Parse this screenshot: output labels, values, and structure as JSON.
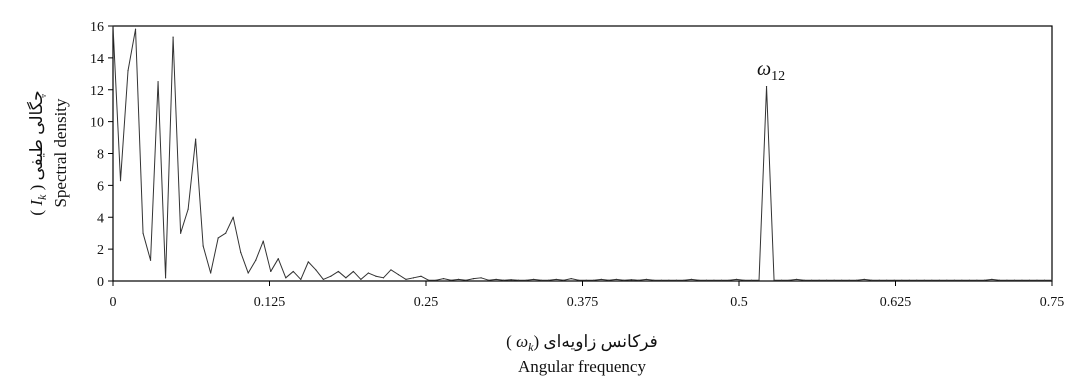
{
  "chart_data": {
    "type": "line",
    "title": "",
    "xlabel_fa": "فرکانس زاویه‌ای",
    "xlabel_symbol": "ω",
    "xlabel_symbol_sub": "k",
    "xlabel_en": "Angular frequency",
    "ylabel_fa": "چگالی طیفی",
    "ylabel_symbol": "I",
    "ylabel_symbol_sub": "k",
    "ylabel_en": "Spectral density",
    "xlim": [
      0,
      0.75
    ],
    "ylim": [
      0,
      16
    ],
    "xticks": [
      0,
      0.125,
      0.25,
      0.375,
      0.5,
      0.625,
      0.75
    ],
    "xtick_labels": [
      "0",
      "0.125",
      "0.25",
      "0.375",
      "0.5",
      "0.625",
      "0.75"
    ],
    "yticks": [
      0,
      2,
      4,
      6,
      8,
      10,
      12,
      14,
      16
    ],
    "ytick_labels": [
      "0",
      "2",
      "4",
      "6",
      "8",
      "10",
      "12",
      "14",
      "16"
    ],
    "grid": false,
    "annotation": {
      "text": "ω",
      "subscript": "12",
      "x": 0.524,
      "y": 12.3
    },
    "series": [
      {
        "x": [
          0,
          0.006,
          0.012,
          0.018,
          0.024,
          0.03,
          0.036,
          0.042,
          0.048,
          0.054,
          0.06,
          0.066,
          0.072,
          0.078,
          0.084,
          0.09,
          0.096,
          0.102,
          0.108,
          0.114,
          0.12,
          0.126,
          0.132,
          0.138,
          0.144,
          0.15,
          0.156,
          0.162,
          0.168,
          0.174,
          0.18,
          0.186,
          0.192,
          0.198,
          0.204,
          0.21,
          0.216,
          0.222,
          0.228,
          0.234,
          0.24,
          0.246,
          0.252,
          0.258,
          0.264,
          0.27,
          0.276,
          0.282,
          0.288,
          0.294,
          0.3,
          0.306,
          0.312,
          0.318,
          0.324,
          0.33,
          0.336,
          0.342,
          0.348,
          0.354,
          0.36,
          0.366,
          0.372,
          0.378,
          0.384,
          0.39,
          0.396,
          0.402,
          0.408,
          0.414,
          0.42,
          0.426,
          0.432,
          0.438,
          0.444,
          0.45,
          0.456,
          0.462,
          0.468,
          0.474,
          0.48,
          0.486,
          0.492,
          0.498,
          0.504,
          0.51,
          0.516,
          0.522,
          0.528,
          0.534,
          0.54,
          0.546,
          0.552,
          0.558,
          0.564,
          0.57,
          0.576,
          0.582,
          0.588,
          0.594,
          0.6,
          0.606,
          0.612,
          0.618,
          0.624,
          0.63,
          0.636,
          0.642,
          0.648,
          0.654,
          0.66,
          0.666,
          0.672,
          0.678,
          0.684,
          0.69,
          0.696,
          0.702,
          0.708,
          0.714,
          0.72,
          0.726,
          0.732,
          0.738,
          0.744,
          0.75
        ],
        "values": [
          16,
          6.3,
          13.2,
          15.8,
          3.0,
          1.3,
          12.5,
          0.2,
          15.3,
          3.0,
          4.5,
          8.9,
          2.2,
          0.5,
          2.7,
          3.0,
          4.0,
          1.8,
          0.5,
          1.3,
          2.5,
          0.6,
          1.4,
          0.2,
          0.6,
          0.1,
          1.2,
          0.7,
          0.1,
          0.3,
          0.6,
          0.2,
          0.6,
          0.1,
          0.5,
          0.3,
          0.2,
          0.7,
          0.4,
          0.1,
          0.2,
          0.3,
          0.05,
          0.05,
          0.15,
          0.05,
          0.1,
          0.05,
          0.15,
          0.2,
          0.05,
          0.1,
          0.05,
          0.08,
          0.05,
          0.05,
          0.1,
          0.05,
          0.05,
          0.1,
          0.05,
          0.15,
          0.05,
          0.05,
          0.05,
          0.1,
          0.05,
          0.1,
          0.05,
          0.08,
          0.05,
          0.1,
          0.05,
          0.05,
          0.05,
          0.05,
          0.05,
          0.1,
          0.05,
          0.05,
          0.05,
          0.05,
          0.05,
          0.1,
          0.05,
          0.05,
          0.05,
          12.2,
          0.05,
          0.05,
          0.05,
          0.1,
          0.05,
          0.05,
          0.05,
          0.05,
          0.05,
          0.05,
          0.05,
          0.05,
          0.1,
          0.05,
          0.05,
          0.05,
          0.05,
          0.05,
          0.05,
          0.05,
          0.05,
          0.05,
          0.05,
          0.05,
          0.05,
          0.05,
          0.05,
          0.05,
          0.05,
          0.1,
          0.05,
          0.05,
          0.05,
          0.05,
          0.05,
          0.05,
          0.05,
          0.05
        ]
      }
    ]
  }
}
